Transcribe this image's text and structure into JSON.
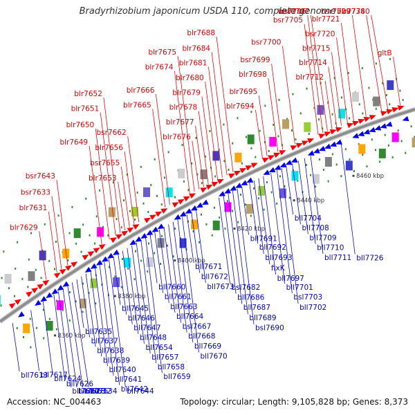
{
  "title": "Bradyrhizobium japonicum USDA 110, complete genome",
  "footer": {
    "accession": "Accession: NC_004463",
    "summary": "Topology: circular; Length: 9,105,828 bp; Genes: 8,373"
  },
  "colors": {
    "forward": "#ff0000",
    "reverse": "#0000ff",
    "forward_label": "#e00000",
    "reverse_label": "#0000cc",
    "backbone": "#8a8a8a",
    "tick": "#2e8b2e"
  },
  "scale": {
    "start_kbp": 8350,
    "end_kbp": 8485,
    "ticks": [
      "8360 kbp",
      "8380 kbp",
      "8400 kbp",
      "8420 kbp",
      "8440 kbp",
      "8460 kbp"
    ],
    "tick_positions_kbp": [
      8360,
      8380,
      8400,
      8420,
      8440,
      8460
    ]
  },
  "forward_genes": [
    {
      "name": "blr7629",
      "pos_kbp": 8366.5
    },
    {
      "name": "blr7631",
      "pos_kbp": 8370.0
    },
    {
      "name": "bsr7633",
      "pos_kbp": 8371.5
    },
    {
      "name": "bsr7643",
      "pos_kbp": 8373.5
    },
    {
      "name": "blr7649",
      "pos_kbp": 8384.5
    },
    {
      "name": "blr7650",
      "pos_kbp": 8387.0
    },
    {
      "name": "blr7651",
      "pos_kbp": 8389.0
    },
    {
      "name": "blr7652",
      "pos_kbp": 8390.5
    },
    {
      "name": "blr7653",
      "pos_kbp": 8392.0
    },
    {
      "name": "bsr7655",
      "pos_kbp": 8393.5
    },
    {
      "name": "blr7656",
      "pos_kbp": 8395.0
    },
    {
      "name": "bsr7662",
      "pos_kbp": 8396.5
    },
    {
      "name": "blr7665",
      "pos_kbp": 8405.0
    },
    {
      "name": "blr7666",
      "pos_kbp": 8406.5
    },
    {
      "name": "blr7674",
      "pos_kbp": 8413.0
    },
    {
      "name": "blr7675",
      "pos_kbp": 8414.5
    },
    {
      "name": "blr7676",
      "pos_kbp": 8416.0
    },
    {
      "name": "blr7677",
      "pos_kbp": 8417.5
    },
    {
      "name": "blr7678",
      "pos_kbp": 8419.0
    },
    {
      "name": "blr7679",
      "pos_kbp": 8420.5
    },
    {
      "name": "blr7680",
      "pos_kbp": 8422.0
    },
    {
      "name": "blr7681",
      "pos_kbp": 8423.5
    },
    {
      "name": "blr7684",
      "pos_kbp": 8425.0
    },
    {
      "name": "blr7688",
      "pos_kbp": 8427.0
    },
    {
      "name": "blr7694",
      "pos_kbp": 8436.5
    },
    {
      "name": "blr7695",
      "pos_kbp": 8438.0
    },
    {
      "name": "blr7698",
      "pos_kbp": 8441.5
    },
    {
      "name": "bsr7699",
      "pos_kbp": 8443.0
    },
    {
      "name": "bsr7700",
      "pos_kbp": 8447.0
    },
    {
      "name": "bsr7705",
      "pos_kbp": 8454.5
    },
    {
      "name": "blr7706",
      "pos_kbp": 8456.0
    },
    {
      "name": "bsr7707",
      "pos_kbp": 8457.5
    },
    {
      "name": "blr7712",
      "pos_kbp": 8459.0
    },
    {
      "name": "blr7714",
      "pos_kbp": 8460.5
    },
    {
      "name": "blr7715",
      "pos_kbp": 8462.0
    },
    {
      "name": "bsr7720",
      "pos_kbp": 8464.0
    },
    {
      "name": "blr7721",
      "pos_kbp": 8466.0
    },
    {
      "name": "bsr7729",
      "pos_kbp": 8470.0
    },
    {
      "name": "blr7738",
      "pos_kbp": 8475.0
    },
    {
      "name": "blr7740",
      "pos_kbp": 8477.0
    },
    {
      "name": "gltB",
      "pos_kbp": 8481.0
    }
  ],
  "reverse_genes": [
    {
      "name": "bll7613",
      "pos_kbp": 8352.5
    },
    {
      "name": "bll7617",
      "pos_kbp": 8358.5
    },
    {
      "name": "bll7624",
      "pos_kbp": 8362.5
    },
    {
      "name": "bll7626",
      "pos_kbp": 8366.0
    },
    {
      "name": "bll7627",
      "pos_kbp": 8367.5
    },
    {
      "name": "bll7628",
      "pos_kbp": 8369.0
    },
    {
      "name": "bll7632",
      "pos_kbp": 8370.5
    },
    {
      "name": "bll7634",
      "pos_kbp": 8372.0
    },
    {
      "name": "bll7635",
      "pos_kbp": 8373.5
    },
    {
      "name": "bll7637",
      "pos_kbp": 8375.0
    },
    {
      "name": "bll7638",
      "pos_kbp": 8376.5
    },
    {
      "name": "bll7639",
      "pos_kbp": 8378.0
    },
    {
      "name": "bll7640",
      "pos_kbp": 8379.5
    },
    {
      "name": "bll7641",
      "pos_kbp": 8381.0
    },
    {
      "name": "bll7642",
      "pos_kbp": 8382.5
    },
    {
      "name": "bll7644",
      "pos_kbp": 8384.0
    },
    {
      "name": "bll7645",
      "pos_kbp": 8385.5
    },
    {
      "name": "bll7646",
      "pos_kbp": 8387.0
    },
    {
      "name": "bll7647",
      "pos_kbp": 8388.5
    },
    {
      "name": "bll7648",
      "pos_kbp": 8390.0
    },
    {
      "name": "bll7654",
      "pos_kbp": 8391.5
    },
    {
      "name": "bll7657",
      "pos_kbp": 8393.0
    },
    {
      "name": "bll7658",
      "pos_kbp": 8394.5
    },
    {
      "name": "bll7659",
      "pos_kbp": 8396.0
    },
    {
      "name": "bll7660",
      "pos_kbp": 8397.5
    },
    {
      "name": "bll7661",
      "pos_kbp": 8399.0
    },
    {
      "name": "bll7663",
      "pos_kbp": 8400.5
    },
    {
      "name": "bll7664",
      "pos_kbp": 8402.0
    },
    {
      "name": "bsl7667",
      "pos_kbp": 8403.5
    },
    {
      "name": "bll7668",
      "pos_kbp": 8405.0
    },
    {
      "name": "bll7669",
      "pos_kbp": 8406.5
    },
    {
      "name": "bll7670",
      "pos_kbp": 8408.0
    },
    {
      "name": "bll7671",
      "pos_kbp": 8409.5
    },
    {
      "name": "bll7672",
      "pos_kbp": 8411.0
    },
    {
      "name": "bll7673",
      "pos_kbp": 8412.5
    },
    {
      "name": "bsl7682",
      "pos_kbp": 8420.0
    },
    {
      "name": "bll7686",
      "pos_kbp": 8421.5
    },
    {
      "name": "bll7687",
      "pos_kbp": 8423.0
    },
    {
      "name": "bll7689",
      "pos_kbp": 8424.5
    },
    {
      "name": "bsl7690",
      "pos_kbp": 8426.0
    },
    {
      "name": "bll7691",
      "pos_kbp": 8427.5
    },
    {
      "name": "bll7692",
      "pos_kbp": 8430.0
    },
    {
      "name": "bll7693",
      "pos_kbp": 8431.5
    },
    {
      "name": "fixK",
      "pos_kbp": 8433.0
    },
    {
      "name": "bll7697",
      "pos_kbp": 8434.5
    },
    {
      "name": "bll7701",
      "pos_kbp": 8437.0
    },
    {
      "name": "bsl7703",
      "pos_kbp": 8439.0
    },
    {
      "name": "bll7702",
      "pos_kbp": 8440.5
    },
    {
      "name": "bll7704",
      "pos_kbp": 8442.0
    },
    {
      "name": "bll7708",
      "pos_kbp": 8444.0
    },
    {
      "name": "bll7709",
      "pos_kbp": 8446.0
    },
    {
      "name": "bll7710",
      "pos_kbp": 8448.0
    },
    {
      "name": "bll7711",
      "pos_kbp": 8450.0
    },
    {
      "name": "bll7726",
      "pos_kbp": 8460.0
    }
  ]
}
